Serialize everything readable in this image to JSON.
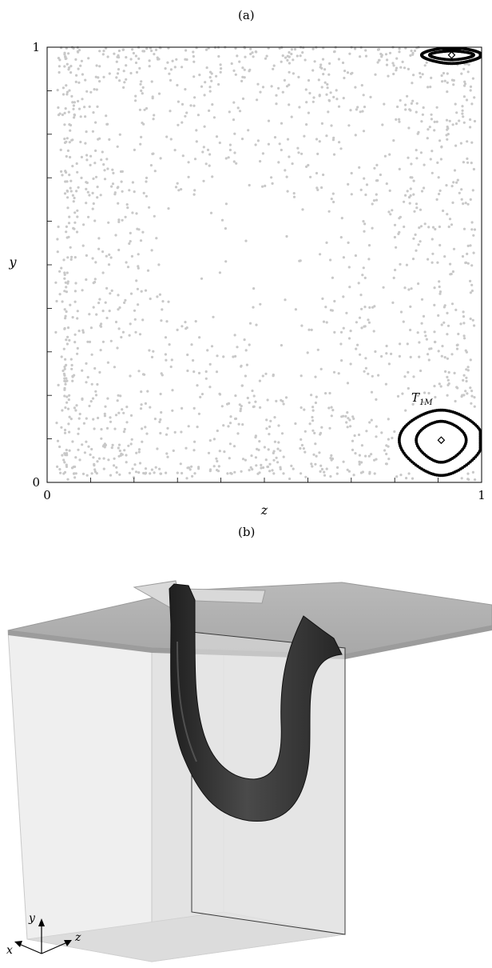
{
  "figure": {
    "panel_a_label": "(a)",
    "panel_b_label": "(b)"
  },
  "chart_data": {
    "type": "scatter",
    "title": "",
    "xlabel": "z",
    "ylabel": "y",
    "xlim": [
      0,
      1
    ],
    "ylim": [
      0,
      1
    ],
    "x_tick_labels": [
      "0",
      "1"
    ],
    "y_tick_labels": [
      "0",
      "1"
    ],
    "minor_ticks_step": 0.1,
    "annotation": "T1M",
    "colors": {
      "scatter": "#c8c8c8",
      "tori": "#000000"
    },
    "scatter": {
      "count": 1700,
      "description_free": true
    },
    "tori": [
      {
        "name": "lower",
        "center": [
          0.907,
          0.097
        ],
        "rings": [
          [
            0.05,
            0.047
          ],
          [
            0.084,
            0.075
          ]
        ],
        "elliptic_point": [
          0.907,
          0.097
        ]
      },
      {
        "name": "upper",
        "center": [
          0.931,
          0.982
        ],
        "rings": [
          [
            0.044,
            0.01
          ],
          [
            0.06,
            0.018
          ]
        ],
        "elliptic_point": [
          0.931,
          0.982
        ]
      }
    ]
  },
  "axes_3d": {
    "y": "y",
    "x": "x",
    "z": "z"
  }
}
